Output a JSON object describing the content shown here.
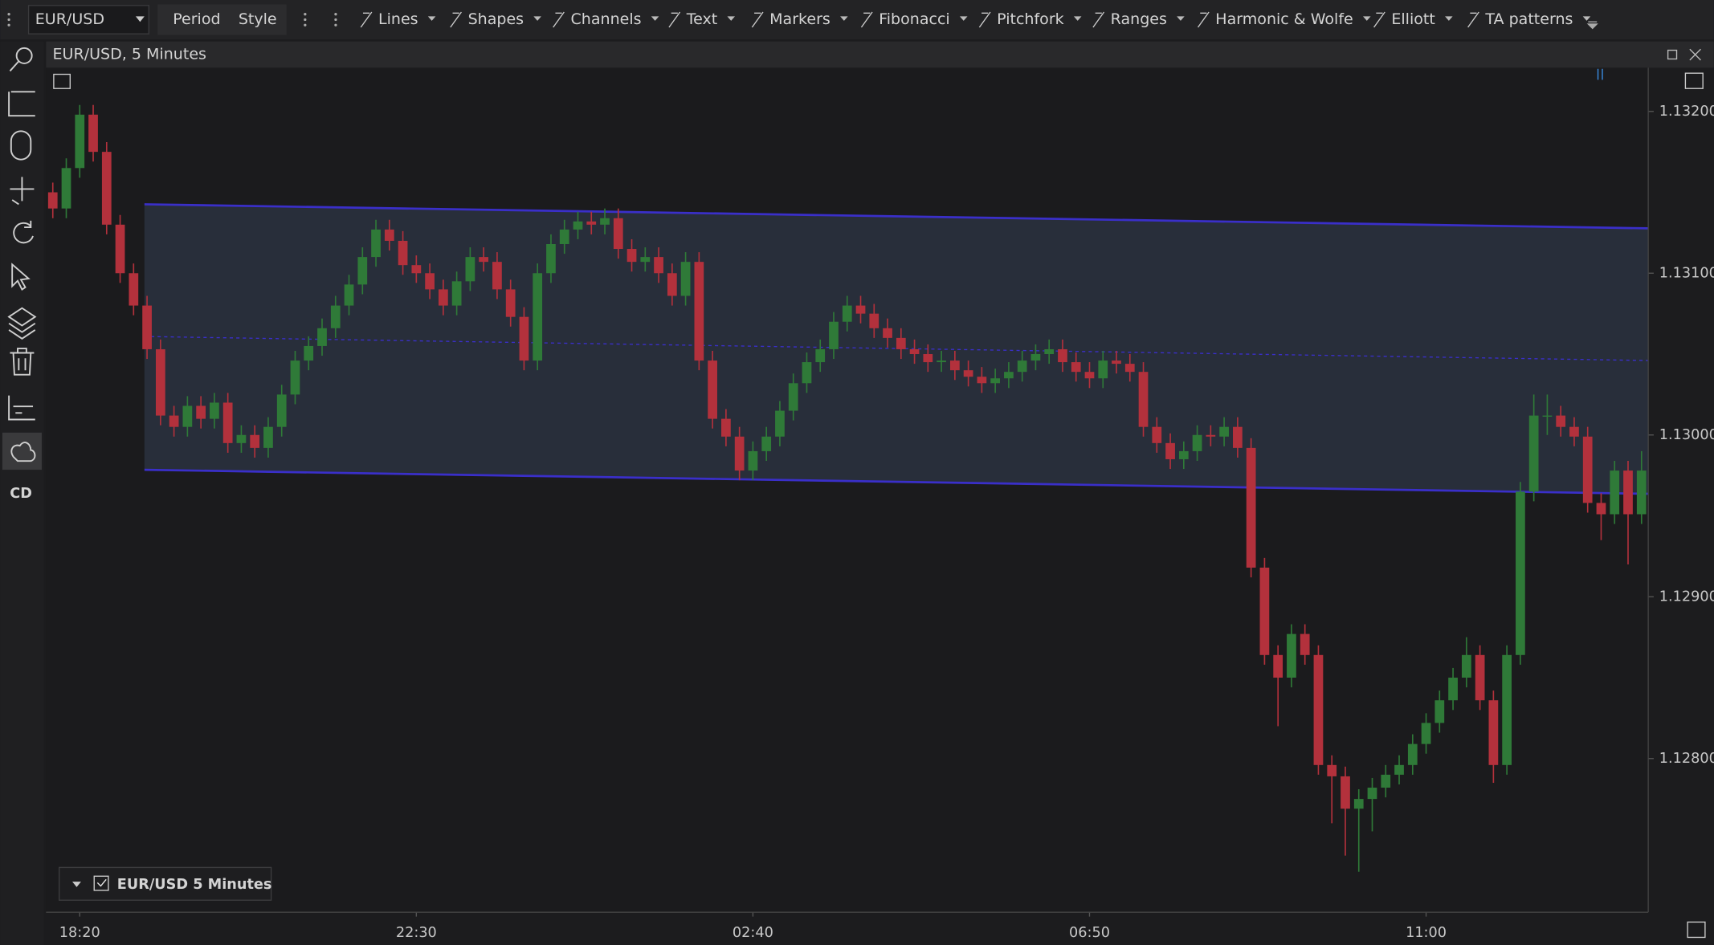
{
  "toolbar": {
    "symbol": "EUR/USD",
    "buttons": [
      "Period",
      "Style"
    ],
    "tools": [
      "Lines",
      "Shapes",
      "Channels",
      "Text",
      "Markers",
      "Fibonacci",
      "Pitchfork",
      "Ranges",
      "Harmonic & Wolfe",
      "Elliott",
      "TA patterns"
    ]
  },
  "sidebar": {
    "badge": "CD"
  },
  "chart_data": {
    "type": "candlestick",
    "title": "EUR/USD, 5 Minutes",
    "legend": "EUR/USD 5 Minutes",
    "up_color": "#2f7a38",
    "down_color": "#b3313c",
    "ylim": [
      1.12705,
      1.13227
    ],
    "yticks": [
      {
        "value": 1.128,
        "label": "1.12800"
      },
      {
        "value": 1.129,
        "label": "1.12900"
      },
      {
        "value": 1.13,
        "label": "1.13000"
      },
      {
        "value": 1.131,
        "label": "1.13100"
      },
      {
        "value": 1.132,
        "label": "1.13200"
      }
    ],
    "categories": [
      null,
      null,
      "18:20",
      null,
      null,
      null,
      null,
      null,
      null,
      null,
      null,
      null,
      null,
      null,
      null,
      null,
      null,
      null,
      null,
      null,
      null,
      null,
      null,
      null,
      null,
      null,
      null,
      "22:30",
      null,
      null,
      null,
      null,
      null,
      null,
      null,
      null,
      null,
      null,
      null,
      null,
      null,
      null,
      null,
      null,
      null,
      null,
      null,
      null,
      null,
      null,
      null,
      null,
      "02:40",
      null,
      null,
      null,
      null,
      null,
      null,
      null,
      null,
      null,
      null,
      null,
      null,
      null,
      null,
      null,
      null,
      null,
      null,
      null,
      null,
      null,
      null,
      null,
      null,
      "06:50",
      null,
      null,
      null,
      null,
      null,
      null,
      null,
      null,
      null,
      null,
      null,
      null,
      null,
      null,
      null,
      null,
      null,
      null,
      null,
      null,
      null,
      null,
      null,
      null,
      "11:00",
      null,
      null,
      null,
      null,
      null,
      null,
      null,
      null,
      null,
      null,
      null,
      null,
      null,
      null,
      null,
      null
    ],
    "candles": [
      [
        1.1315,
        1.13156,
        1.13134,
        1.1314
      ],
      [
        1.1314,
        1.13171,
        1.13134,
        1.13165
      ],
      [
        1.13165,
        1.13204,
        1.13159,
        1.13198
      ],
      [
        1.13198,
        1.13204,
        1.13169,
        1.13175
      ],
      [
        1.13175,
        1.13181,
        1.13124,
        1.1313
      ],
      [
        1.1313,
        1.13136,
        1.13094,
        1.131
      ],
      [
        1.131,
        1.13106,
        1.13074,
        1.1308
      ],
      [
        1.1308,
        1.13086,
        1.13047,
        1.13053
      ],
      [
        1.13053,
        1.13059,
        1.13006,
        1.13012
      ],
      [
        1.13012,
        1.13018,
        1.12999,
        1.13005
      ],
      [
        1.13005,
        1.13024,
        1.12999,
        1.13018
      ],
      [
        1.13018,
        1.13024,
        1.13004,
        1.1301
      ],
      [
        1.1301,
        1.13026,
        1.13004,
        1.1302
      ],
      [
        1.1302,
        1.13026,
        1.12989,
        1.12995
      ],
      [
        1.12995,
        1.13006,
        1.12989,
        1.13
      ],
      [
        1.13,
        1.13006,
        1.12986,
        1.12992
      ],
      [
        1.12992,
        1.13011,
        1.12986,
        1.13005
      ],
      [
        1.13005,
        1.13031,
        1.12999,
        1.13025
      ],
      [
        1.13025,
        1.13052,
        1.13019,
        1.13046
      ],
      [
        1.13046,
        1.13061,
        1.1304,
        1.13055
      ],
      [
        1.13055,
        1.13072,
        1.13049,
        1.13066
      ],
      [
        1.13066,
        1.13086,
        1.1306,
        1.1308
      ],
      [
        1.1308,
        1.13099,
        1.13074,
        1.13093
      ],
      [
        1.13093,
        1.13116,
        1.13087,
        1.1311
      ],
      [
        1.1311,
        1.13133,
        1.13104,
        1.13127
      ],
      [
        1.13127,
        1.13133,
        1.13114,
        1.1312
      ],
      [
        1.1312,
        1.13126,
        1.13099,
        1.13105
      ],
      [
        1.13105,
        1.13111,
        1.13094,
        1.131
      ],
      [
        1.131,
        1.13106,
        1.13084,
        1.1309
      ],
      [
        1.1309,
        1.13096,
        1.13074,
        1.1308
      ],
      [
        1.1308,
        1.13101,
        1.13074,
        1.13095
      ],
      [
        1.13095,
        1.13116,
        1.13089,
        1.1311
      ],
      [
        1.1311,
        1.13116,
        1.13101,
        1.13107
      ],
      [
        1.13107,
        1.13113,
        1.13084,
        1.1309
      ],
      [
        1.1309,
        1.13096,
        1.13067,
        1.13073
      ],
      [
        1.13073,
        1.13079,
        1.1304,
        1.13046
      ],
      [
        1.13046,
        1.13106,
        1.1304,
        1.131
      ],
      [
        1.131,
        1.13124,
        1.13094,
        1.13118
      ],
      [
        1.13118,
        1.13133,
        1.13112,
        1.13127
      ],
      [
        1.13127,
        1.13138,
        1.13121,
        1.13132
      ],
      [
        1.13132,
        1.13138,
        1.13124,
        1.1313
      ],
      [
        1.1313,
        1.1314,
        1.13124,
        1.13134
      ],
      [
        1.13134,
        1.1314,
        1.13109,
        1.13115
      ],
      [
        1.13115,
        1.13121,
        1.13101,
        1.13107
      ],
      [
        1.13107,
        1.13116,
        1.13101,
        1.1311
      ],
      [
        1.1311,
        1.13116,
        1.13094,
        1.131
      ],
      [
        1.131,
        1.13106,
        1.1308,
        1.13086
      ],
      [
        1.13086,
        1.13113,
        1.1308,
        1.13107
      ],
      [
        1.13107,
        1.13113,
        1.1304,
        1.13046
      ],
      [
        1.13046,
        1.13052,
        1.13004,
        1.1301
      ],
      [
        1.1301,
        1.13016,
        1.12993,
        1.12999
      ],
      [
        1.12999,
        1.13005,
        1.12972,
        1.12978
      ],
      [
        1.12978,
        1.12996,
        1.12972,
        1.1299
      ],
      [
        1.1299,
        1.13005,
        1.12984,
        1.12999
      ],
      [
        1.12999,
        1.13021,
        1.12993,
        1.13015
      ],
      [
        1.13015,
        1.13038,
        1.13009,
        1.13032
      ],
      [
        1.13032,
        1.13051,
        1.13026,
        1.13045
      ],
      [
        1.13045,
        1.13059,
        1.13039,
        1.13053
      ],
      [
        1.13053,
        1.13076,
        1.13047,
        1.1307
      ],
      [
        1.1307,
        1.13086,
        1.13064,
        1.1308
      ],
      [
        1.1308,
        1.13086,
        1.13069,
        1.13075
      ],
      [
        1.13075,
        1.13081,
        1.1306,
        1.13066
      ],
      [
        1.13066,
        1.13072,
        1.13054,
        1.1306
      ],
      [
        1.1306,
        1.13066,
        1.13047,
        1.13053
      ],
      [
        1.13053,
        1.13059,
        1.13044,
        1.1305
      ],
      [
        1.1305,
        1.13056,
        1.13039,
        1.13045
      ],
      [
        1.13045,
        1.13052,
        1.13039,
        1.13046
      ],
      [
        1.13046,
        1.13052,
        1.13034,
        1.1304
      ],
      [
        1.1304,
        1.13046,
        1.1303,
        1.13036
      ],
      [
        1.13036,
        1.13042,
        1.13026,
        1.13032
      ],
      [
        1.13032,
        1.13041,
        1.13026,
        1.13035
      ],
      [
        1.13035,
        1.13045,
        1.13029,
        1.13039
      ],
      [
        1.13039,
        1.13052,
        1.13033,
        1.13046
      ],
      [
        1.13046,
        1.13056,
        1.1304,
        1.1305
      ],
      [
        1.1305,
        1.13059,
        1.13044,
        1.13053
      ],
      [
        1.13053,
        1.13059,
        1.13039,
        1.13045
      ],
      [
        1.13045,
        1.13051,
        1.13033,
        1.13039
      ],
      [
        1.13039,
        1.13045,
        1.13029,
        1.13035
      ],
      [
        1.13035,
        1.13052,
        1.13029,
        1.13046
      ],
      [
        1.13046,
        1.13052,
        1.13038,
        1.13044
      ],
      [
        1.13044,
        1.1305,
        1.13033,
        1.13039
      ],
      [
        1.13039,
        1.13045,
        1.12999,
        1.13005
      ],
      [
        1.13005,
        1.13011,
        1.12989,
        1.12995
      ],
      [
        1.12995,
        1.13001,
        1.12979,
        1.12985
      ],
      [
        1.12985,
        1.12996,
        1.12979,
        1.1299
      ],
      [
        1.1299,
        1.13006,
        1.12984,
        1.13
      ],
      [
        1.13,
        1.13006,
        1.12993,
        1.12999
      ],
      [
        1.12999,
        1.13011,
        1.12993,
        1.13005
      ],
      [
        1.13005,
        1.13011,
        1.12986,
        1.12992
      ],
      [
        1.12992,
        1.12998,
        1.12912,
        1.12918
      ],
      [
        1.12918,
        1.12924,
        1.12858,
        1.12864
      ],
      [
        1.12864,
        1.1287,
        1.1282,
        1.1285
      ],
      [
        1.1285,
        1.12883,
        1.12844,
        1.12877
      ],
      [
        1.12877,
        1.12883,
        1.12858,
        1.12864
      ],
      [
        1.12864,
        1.1287,
        1.1279,
        1.12796
      ],
      [
        1.12796,
        1.12802,
        1.1276,
        1.12789
      ],
      [
        1.12789,
        1.12795,
        1.1274,
        1.12769
      ],
      [
        1.12769,
        1.12781,
        1.1273,
        1.12775
      ],
      [
        1.12775,
        1.12788,
        1.12755,
        1.12782
      ],
      [
        1.12782,
        1.12796,
        1.12776,
        1.1279
      ],
      [
        1.1279,
        1.12802,
        1.12784,
        1.12796
      ],
      [
        1.12796,
        1.12815,
        1.1279,
        1.12809
      ],
      [
        1.12809,
        1.12828,
        1.12803,
        1.12822
      ],
      [
        1.12822,
        1.12842,
        1.12816,
        1.12836
      ],
      [
        1.12836,
        1.12856,
        1.1283,
        1.1285
      ],
      [
        1.1285,
        1.12875,
        1.12844,
        1.12864
      ],
      [
        1.12864,
        1.1287,
        1.1283,
        1.12836
      ],
      [
        1.12836,
        1.12842,
        1.12785,
        1.12796
      ],
      [
        1.12796,
        1.1287,
        1.1279,
        1.12864
      ],
      [
        1.12864,
        1.12971,
        1.12858,
        1.12965
      ],
      [
        1.12965,
        1.13025,
        1.12959,
        1.13012
      ],
      [
        1.13012,
        1.13025,
        1.13,
        1.13012
      ],
      [
        1.13012,
        1.13018,
        1.12999,
        1.13005
      ],
      [
        1.13005,
        1.13011,
        1.12993,
        1.12999
      ],
      [
        1.12999,
        1.13005,
        1.12952,
        1.12958
      ],
      [
        1.12958,
        1.12964,
        1.12935,
        1.12951
      ],
      [
        1.12951,
        1.12984,
        1.12945,
        1.12978
      ],
      [
        1.12978,
        1.12984,
        1.1292,
        1.12951
      ],
      [
        1.12951,
        1.1299,
        1.12945,
        1.12978
      ]
    ]
  }
}
